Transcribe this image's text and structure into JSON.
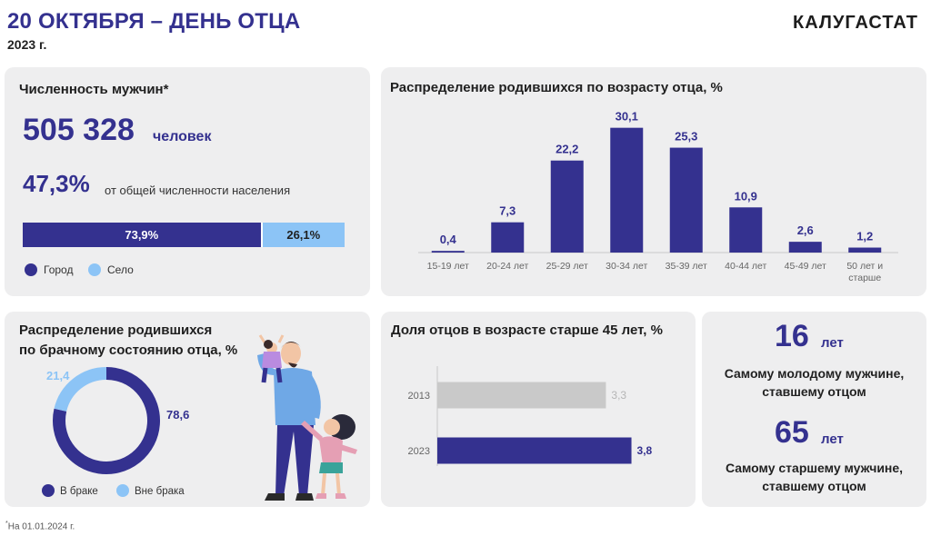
{
  "header": {
    "title": "20 ОКТЯБРЯ – ДЕНЬ ОТЦА",
    "year": "2023 г.",
    "logo": "КАЛУГАСТАТ"
  },
  "men": {
    "title": "Численность мужчин*",
    "count": "505 328",
    "count_unit": "человек",
    "share": "47,3%",
    "share_text": "от общей численности  населения",
    "legend_city": "Город",
    "legend_village": "Село",
    "colors": {
      "city": "#34318f",
      "village": "#8cc4f6"
    }
  },
  "age_chart": {
    "title": "Распределение родившихся по возрасту отца, %"
  },
  "marital": {
    "title_line1": "Распределение родившихся",
    "title_line2": "по брачному состоянию отца, %"
  },
  "older": {
    "title": "Доля отцов в возрасте старше 45 лет, %"
  },
  "ages": {
    "youngest_value": "16",
    "youngest_unit": "лет",
    "youngest_caption_1": "Самому молодому мужчине,",
    "youngest_caption_2": "ставшему отцом",
    "oldest_value": "65",
    "oldest_unit": "лет",
    "oldest_caption_1": "Самому старшему мужчине,",
    "oldest_caption_2": "ставшему отцом"
  },
  "footnote": {
    "mark": "*",
    "text": "На 01.01.2024  г."
  },
  "chart_data": [
    {
      "type": "bar",
      "orientation": "horizontal-stacked",
      "title": "",
      "categories": [
        "Город",
        "Село"
      ],
      "values": [
        73.9,
        26.1
      ],
      "labels": [
        "73,9%",
        "26,1%"
      ],
      "colors": [
        "#34318f",
        "#8cc4f6"
      ]
    },
    {
      "type": "bar",
      "title": "Распределение родившихся по возрасту отца, %",
      "categories": [
        "15-19  лет",
        "20-24  лет",
        "25-29  лет",
        "30-34  лет",
        "35-39  лет",
        "40-44  лет",
        "45-49  лет",
        "50 лет и старше"
      ],
      "values": [
        0.4,
        7.3,
        22.2,
        30.1,
        25.3,
        10.9,
        2.6,
        1.2
      ],
      "labels": [
        "0,4",
        "7,3",
        "22,2",
        "30,1",
        "25,3",
        "10,9",
        "2,6",
        "1,2"
      ],
      "color": "#34318f",
      "ylim": [
        0,
        32
      ],
      "grid": false
    },
    {
      "type": "pie",
      "style": "donut",
      "title": "",
      "categories": [
        "В браке",
        "Вне брака"
      ],
      "values": [
        78.6,
        21.4
      ],
      "labels": [
        "78,6",
        "21,4"
      ],
      "colors": [
        "#34318f",
        "#8cc4f6"
      ],
      "legend": "bottom"
    },
    {
      "type": "bar",
      "orientation": "horizontal",
      "title": "Доля отцов в возрасте старше 45 лет, %",
      "categories": [
        "2013",
        "2023"
      ],
      "values": [
        3.3,
        3.8
      ],
      "labels": [
        "3,3",
        "3,8"
      ],
      "colors": [
        "#c9c9c9",
        "#34318f"
      ],
      "xlim": [
        0,
        4.2
      ]
    }
  ]
}
